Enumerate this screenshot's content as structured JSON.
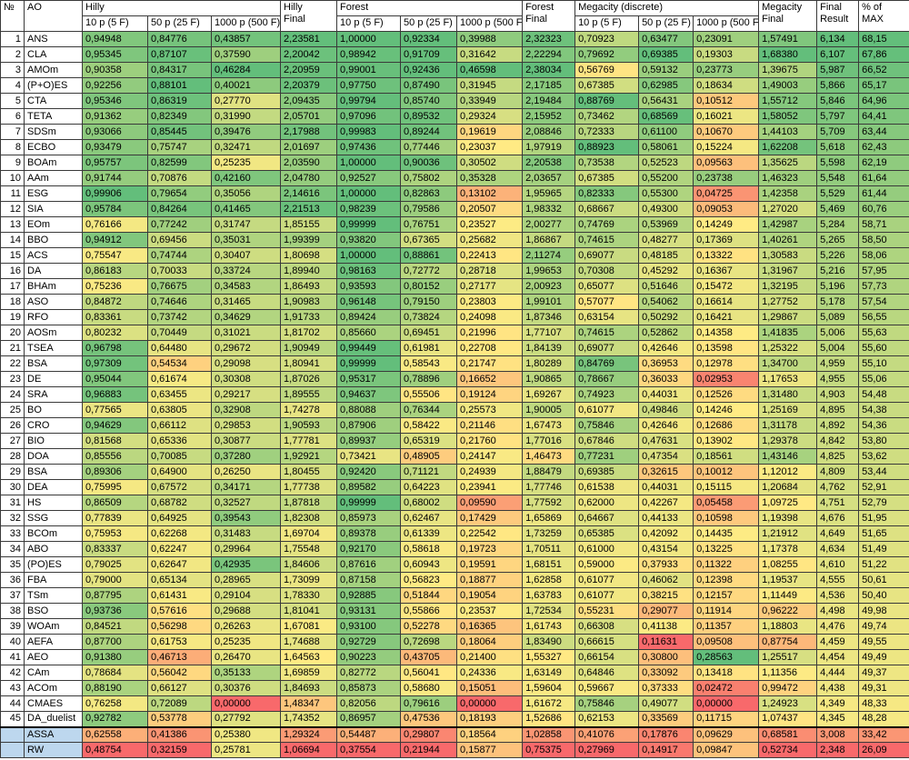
{
  "chart_data": {
    "type": "table",
    "heatmap": true,
    "index_label": "№",
    "name_label": "AO",
    "column_groups": [
      {
        "label": "Hilly",
        "final_label": "Hilly\nFinal"
      },
      {
        "label": "Forest",
        "final_label": "Forest\nFinal"
      },
      {
        "label": "Megacity (discrete)",
        "final_label": "Megacity\nFinal"
      }
    ],
    "subcolumns": [
      "10 p (5 F)",
      "50 p (25 F)",
      "1000 p (500 F)"
    ],
    "final_result_label": "Final\nResult",
    "pct_max_label": "% of\nMAX",
    "value_columns": [
      "hilly_10p",
      "hilly_50p",
      "hilly_1000p",
      "hilly_final",
      "forest_10p",
      "forest_50p",
      "forest_1000p",
      "forest_final",
      "megacity_10p",
      "megacity_50p",
      "megacity_1000p",
      "megacity_final",
      "final_result",
      "pct_of_max"
    ],
    "rows": [
      {
        "num": "1",
        "ao": "ANS",
        "values": [
          "0,94948",
          "0,84776",
          "0,43857",
          "2,23581",
          "1,00000",
          "0,92334",
          "0,39988",
          "2,32323",
          "0,70923",
          "0,63477",
          "0,23091",
          "1,57491",
          "6,134",
          "68,15"
        ]
      },
      {
        "num": "2",
        "ao": "CLA",
        "values": [
          "0,95345",
          "0,87107",
          "0,37590",
          "2,20042",
          "0,98942",
          "0,91709",
          "0,31642",
          "2,22294",
          "0,79692",
          "0,69385",
          "0,19303",
          "1,68380",
          "6,107",
          "67,86"
        ]
      },
      {
        "num": "3",
        "ao": "AMOm",
        "values": [
          "0,90358",
          "0,84317",
          "0,46284",
          "2,20959",
          "0,99001",
          "0,92436",
          "0,46598",
          "2,38034",
          "0,56769",
          "0,59132",
          "0,23773",
          "1,39675",
          "5,987",
          "66,52"
        ]
      },
      {
        "num": "4",
        "ao": "(P+O)ES",
        "values": [
          "0,92256",
          "0,88101",
          "0,40021",
          "2,20379",
          "0,97750",
          "0,87490",
          "0,31945",
          "2,17185",
          "0,67385",
          "0,62985",
          "0,18634",
          "1,49003",
          "5,866",
          "65,17"
        ]
      },
      {
        "num": "5",
        "ao": "CTA",
        "values": [
          "0,95346",
          "0,86319",
          "0,27770",
          "2,09435",
          "0,99794",
          "0,85740",
          "0,33949",
          "2,19484",
          "0,88769",
          "0,56431",
          "0,10512",
          "1,55712",
          "5,846",
          "64,96"
        ]
      },
      {
        "num": "6",
        "ao": "TETA",
        "values": [
          "0,91362",
          "0,82349",
          "0,31990",
          "2,05701",
          "0,97096",
          "0,89532",
          "0,29324",
          "2,15952",
          "0,73462",
          "0,68569",
          "0,16021",
          "1,58052",
          "5,797",
          "64,41"
        ]
      },
      {
        "num": "7",
        "ao": "SDSm",
        "values": [
          "0,93066",
          "0,85445",
          "0,39476",
          "2,17988",
          "0,99983",
          "0,89244",
          "0,19619",
          "2,08846",
          "0,72333",
          "0,61100",
          "0,10670",
          "1,44103",
          "5,709",
          "63,44"
        ]
      },
      {
        "num": "8",
        "ao": "ECBO",
        "values": [
          "0,93479",
          "0,75747",
          "0,32471",
          "2,01697",
          "0,97436",
          "0,77446",
          "0,23037",
          "1,97919",
          "0,88923",
          "0,58061",
          "0,15224",
          "1,62208",
          "5,618",
          "62,43"
        ]
      },
      {
        "num": "9",
        "ao": "BOAm",
        "values": [
          "0,95757",
          "0,82599",
          "0,25235",
          "2,03590",
          "1,00000",
          "0,90036",
          "0,30502",
          "2,20538",
          "0,73538",
          "0,52523",
          "0,09563",
          "1,35625",
          "5,598",
          "62,19"
        ]
      },
      {
        "num": "10",
        "ao": "AAm",
        "values": [
          "0,91744",
          "0,70876",
          "0,42160",
          "2,04780",
          "0,92527",
          "0,75802",
          "0,35328",
          "2,03657",
          "0,67385",
          "0,55200",
          "0,23738",
          "1,46323",
          "5,548",
          "61,64"
        ]
      },
      {
        "num": "11",
        "ao": "ESG",
        "values": [
          "0,99906",
          "0,79654",
          "0,35056",
          "2,14616",
          "1,00000",
          "0,82863",
          "0,13102",
          "1,95965",
          "0,82333",
          "0,55300",
          "0,04725",
          "1,42358",
          "5,529",
          "61,44"
        ]
      },
      {
        "num": "12",
        "ao": "SIA",
        "values": [
          "0,95784",
          "0,84264",
          "0,41465",
          "2,21513",
          "0,98239",
          "0,79586",
          "0,20507",
          "1,98332",
          "0,68667",
          "0,49300",
          "0,09053",
          "1,27020",
          "5,469",
          "60,76"
        ]
      },
      {
        "num": "13",
        "ao": "EOm",
        "values": [
          "0,76166",
          "0,77242",
          "0,31747",
          "1,85155",
          "0,99999",
          "0,76751",
          "0,23527",
          "2,00277",
          "0,74769",
          "0,53969",
          "0,14249",
          "1,42987",
          "5,284",
          "58,71"
        ]
      },
      {
        "num": "14",
        "ao": "BBO",
        "values": [
          "0,94912",
          "0,69456",
          "0,35031",
          "1,99399",
          "0,93820",
          "0,67365",
          "0,25682",
          "1,86867",
          "0,74615",
          "0,48277",
          "0,17369",
          "1,40261",
          "5,265",
          "58,50"
        ]
      },
      {
        "num": "15",
        "ao": "ACS",
        "values": [
          "0,75547",
          "0,74744",
          "0,30407",
          "1,80698",
          "1,00000",
          "0,88861",
          "0,22413",
          "2,11274",
          "0,69077",
          "0,48185",
          "0,13322",
          "1,30583",
          "5,226",
          "58,06"
        ]
      },
      {
        "num": "16",
        "ao": "DA",
        "values": [
          "0,86183",
          "0,70033",
          "0,33724",
          "1,89940",
          "0,98163",
          "0,72772",
          "0,28718",
          "1,99653",
          "0,70308",
          "0,45292",
          "0,16367",
          "1,31967",
          "5,216",
          "57,95"
        ]
      },
      {
        "num": "17",
        "ao": "BHAm",
        "values": [
          "0,75236",
          "0,76675",
          "0,34583",
          "1,86493",
          "0,93593",
          "0,80152",
          "0,27177",
          "2,00923",
          "0,65077",
          "0,51646",
          "0,15472",
          "1,32195",
          "5,196",
          "57,73"
        ]
      },
      {
        "num": "18",
        "ao": "ASO",
        "values": [
          "0,84872",
          "0,74646",
          "0,31465",
          "1,90983",
          "0,96148",
          "0,79150",
          "0,23803",
          "1,99101",
          "0,57077",
          "0,54062",
          "0,16614",
          "1,27752",
          "5,178",
          "57,54"
        ]
      },
      {
        "num": "19",
        "ao": "RFO",
        "values": [
          "0,83361",
          "0,73742",
          "0,34629",
          "1,91733",
          "0,89424",
          "0,73824",
          "0,24098",
          "1,87346",
          "0,63154",
          "0,50292",
          "0,16421",
          "1,29867",
          "5,089",
          "56,55"
        ]
      },
      {
        "num": "20",
        "ao": "AOSm",
        "values": [
          "0,80232",
          "0,70449",
          "0,31021",
          "1,81702",
          "0,85660",
          "0,69451",
          "0,21996",
          "1,77107",
          "0,74615",
          "0,52862",
          "0,14358",
          "1,41835",
          "5,006",
          "55,63"
        ]
      },
      {
        "num": "21",
        "ao": "TSEA",
        "values": [
          "0,96798",
          "0,64480",
          "0,29672",
          "1,90949",
          "0,99449",
          "0,61981",
          "0,22708",
          "1,84139",
          "0,69077",
          "0,42646",
          "0,13598",
          "1,25322",
          "5,004",
          "55,60"
        ]
      },
      {
        "num": "22",
        "ao": "BSA",
        "values": [
          "0,97309",
          "0,54534",
          "0,29098",
          "1,80941",
          "0,99999",
          "0,58543",
          "0,21747",
          "1,80289",
          "0,84769",
          "0,36953",
          "0,12978",
          "1,34700",
          "4,959",
          "55,10"
        ]
      },
      {
        "num": "23",
        "ao": "DE",
        "values": [
          "0,95044",
          "0,61674",
          "0,30308",
          "1,87026",
          "0,95317",
          "0,78896",
          "0,16652",
          "1,90865",
          "0,78667",
          "0,36033",
          "0,02953",
          "1,17653",
          "4,955",
          "55,06"
        ]
      },
      {
        "num": "24",
        "ao": "SRA",
        "values": [
          "0,96883",
          "0,63455",
          "0,29217",
          "1,89555",
          "0,94637",
          "0,55506",
          "0,19124",
          "1,69267",
          "0,74923",
          "0,44031",
          "0,12526",
          "1,31480",
          "4,903",
          "54,48"
        ]
      },
      {
        "num": "25",
        "ao": "BO",
        "values": [
          "0,77565",
          "0,63805",
          "0,32908",
          "1,74278",
          "0,88088",
          "0,76344",
          "0,25573",
          "1,90005",
          "0,61077",
          "0,49846",
          "0,14246",
          "1,25169",
          "4,895",
          "54,38"
        ]
      },
      {
        "num": "26",
        "ao": "CRO",
        "values": [
          "0,94629",
          "0,66112",
          "0,29853",
          "1,90593",
          "0,87906",
          "0,58422",
          "0,21146",
          "1,67473",
          "0,75846",
          "0,42646",
          "0,12686",
          "1,31178",
          "4,892",
          "54,36"
        ]
      },
      {
        "num": "27",
        "ao": "BIO",
        "values": [
          "0,81568",
          "0,65336",
          "0,30877",
          "1,77781",
          "0,89937",
          "0,65319",
          "0,21760",
          "1,77016",
          "0,67846",
          "0,47631",
          "0,13902",
          "1,29378",
          "4,842",
          "53,80"
        ]
      },
      {
        "num": "28",
        "ao": "DOA",
        "values": [
          "0,85556",
          "0,70085",
          "0,37280",
          "1,92921",
          "0,73421",
          "0,48905",
          "0,24147",
          "1,46473",
          "0,77231",
          "0,47354",
          "0,18561",
          "1,43146",
          "4,825",
          "53,62"
        ]
      },
      {
        "num": "29",
        "ao": "BSA",
        "values": [
          "0,89306",
          "0,64900",
          "0,26250",
          "1,80455",
          "0,92420",
          "0,71121",
          "0,24939",
          "1,88479",
          "0,69385",
          "0,32615",
          "0,10012",
          "1,12012",
          "4,809",
          "53,44"
        ]
      },
      {
        "num": "30",
        "ao": "DEA",
        "values": [
          "0,75995",
          "0,67572",
          "0,34171",
          "1,77738",
          "0,89582",
          "0,64223",
          "0,23941",
          "1,77746",
          "0,61538",
          "0,44031",
          "0,15115",
          "1,20684",
          "4,762",
          "52,91"
        ]
      },
      {
        "num": "31",
        "ao": "HS",
        "values": [
          "0,86509",
          "0,68782",
          "0,32527",
          "1,87818",
          "0,99999",
          "0,68002",
          "0,09590",
          "1,77592",
          "0,62000",
          "0,42267",
          "0,05458",
          "1,09725",
          "4,751",
          "52,79"
        ]
      },
      {
        "num": "32",
        "ao": "SSG",
        "values": [
          "0,77839",
          "0,64925",
          "0,39543",
          "1,82308",
          "0,85973",
          "0,62467",
          "0,17429",
          "1,65869",
          "0,64667",
          "0,44133",
          "0,10598",
          "1,19398",
          "4,676",
          "51,95"
        ]
      },
      {
        "num": "33",
        "ao": "BCOm",
        "values": [
          "0,75953",
          "0,62268",
          "0,31483",
          "1,69704",
          "0,89378",
          "0,61339",
          "0,22542",
          "1,73259",
          "0,65385",
          "0,42092",
          "0,14435",
          "1,21912",
          "4,649",
          "51,65"
        ]
      },
      {
        "num": "34",
        "ao": "ABO",
        "values": [
          "0,83337",
          "0,62247",
          "0,29964",
          "1,75548",
          "0,92170",
          "0,58618",
          "0,19723",
          "1,70511",
          "0,61000",
          "0,43154",
          "0,13225",
          "1,17378",
          "4,634",
          "51,49"
        ]
      },
      {
        "num": "35",
        "ao": "(PO)ES",
        "values": [
          "0,79025",
          "0,62647",
          "0,42935",
          "1,84606",
          "0,87616",
          "0,60943",
          "0,19591",
          "1,68151",
          "0,59000",
          "0,37933",
          "0,11322",
          "1,08255",
          "4,610",
          "51,22"
        ]
      },
      {
        "num": "36",
        "ao": "FBA",
        "values": [
          "0,79000",
          "0,65134",
          "0,28965",
          "1,73099",
          "0,87158",
          "0,56823",
          "0,18877",
          "1,62858",
          "0,61077",
          "0,46062",
          "0,12398",
          "1,19537",
          "4,555",
          "50,61"
        ]
      },
      {
        "num": "37",
        "ao": "TSm",
        "values": [
          "0,87795",
          "0,61431",
          "0,29104",
          "1,78330",
          "0,92885",
          "0,51844",
          "0,19054",
          "1,63783",
          "0,61077",
          "0,38215",
          "0,12157",
          "1,11449",
          "4,536",
          "50,40"
        ]
      },
      {
        "num": "38",
        "ao": "BSO",
        "values": [
          "0,93736",
          "0,57616",
          "0,29688",
          "1,81041",
          "0,93131",
          "0,55866",
          "0,23537",
          "1,72534",
          "0,55231",
          "0,29077",
          "0,11914",
          "0,96222",
          "4,498",
          "49,98"
        ]
      },
      {
        "num": "39",
        "ao": "WOAm",
        "values": [
          "0,84521",
          "0,56298",
          "0,26263",
          "1,67081",
          "0,93100",
          "0,52278",
          "0,16365",
          "1,61743",
          "0,66308",
          "0,41138",
          "0,11357",
          "1,18803",
          "4,476",
          "49,74"
        ]
      },
      {
        "num": "40",
        "ao": "AEFA",
        "values": [
          "0,87700",
          "0,61753",
          "0,25235",
          "1,74688",
          "0,92729",
          "0,72698",
          "0,18064",
          "1,83490",
          "0,66615",
          "0,11631",
          "0,09508",
          "0,87754",
          "4,459",
          "49,55"
        ]
      },
      {
        "num": "41",
        "ao": "AEO",
        "values": [
          "0,91380",
          "0,46713",
          "0,26470",
          "1,64563",
          "0,90223",
          "0,43705",
          "0,21400",
          "1,55327",
          "0,66154",
          "0,30800",
          "0,28563",
          "1,25517",
          "4,454",
          "49,49"
        ]
      },
      {
        "num": "42",
        "ao": "CAm",
        "values": [
          "0,78684",
          "0,56042",
          "0,35133",
          "1,69859",
          "0,82772",
          "0,56041",
          "0,24336",
          "1,63149",
          "0,64846",
          "0,33092",
          "0,13418",
          "1,11356",
          "4,444",
          "49,37"
        ]
      },
      {
        "num": "43",
        "ao": "ACOm",
        "values": [
          "0,88190",
          "0,66127",
          "0,30376",
          "1,84693",
          "0,85873",
          "0,58680",
          "0,15051",
          "1,59604",
          "0,59667",
          "0,37333",
          "0,02472",
          "0,99472",
          "4,438",
          "49,31"
        ]
      },
      {
        "num": "44",
        "ao": "CMAES",
        "values": [
          "0,76258",
          "0,72089",
          "0,00000",
          "1,48347",
          "0,82056",
          "0,79616",
          "0,00000",
          "1,61672",
          "0,75846",
          "0,49077",
          "0,00000",
          "1,24923",
          "4,349",
          "48,33"
        ]
      },
      {
        "num": "45",
        "ao": "DA_duelist",
        "values": [
          "0,92782",
          "0,53778",
          "0,27792",
          "1,74352",
          "0,86957",
          "0,47536",
          "0,18193",
          "1,52686",
          "0,62153",
          "0,33569",
          "0,11715",
          "1,07437",
          "4,345",
          "48,28"
        ]
      }
    ],
    "special_rows": [
      {
        "num": "",
        "ao": "ASSA",
        "highlight": true,
        "values": [
          "0,62558",
          "0,41386",
          "0,25380",
          "1,29324",
          "0,54487",
          "0,29807",
          "0,18564",
          "1,02858",
          "0,41076",
          "0,17876",
          "0,09629",
          "0,68581",
          "3,008",
          "33,42"
        ]
      },
      {
        "num": "",
        "ao": "RW",
        "highlight": true,
        "values": [
          "0,48754",
          "0,32159",
          "0,25781",
          "1,06694",
          "0,37554",
          "0,21944",
          "0,15877",
          "0,75375",
          "0,27969",
          "0,14917",
          "0,09847",
          "0,52734",
          "2,348",
          "26,09"
        ]
      }
    ]
  },
  "colors": {
    "scale_min": "#F8696B",
    "scale_mid": "#FFEB84",
    "scale_max": "#63BE7B",
    "highlight_label_bg": "#BDD7EE",
    "grid_border": "#3a3a3a"
  }
}
